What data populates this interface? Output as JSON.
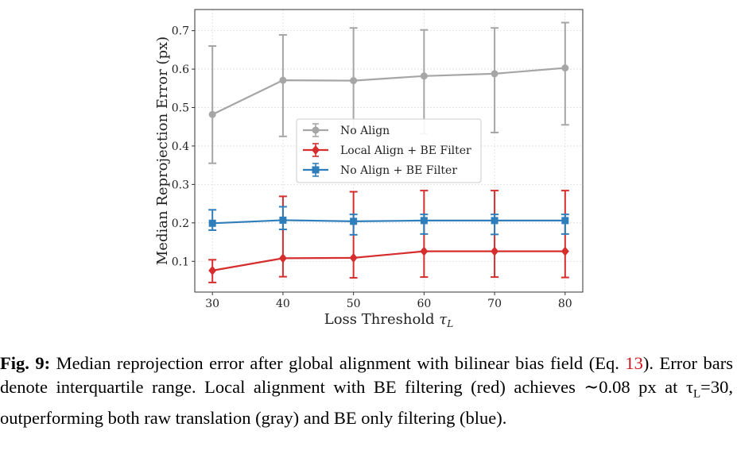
{
  "chart_data": {
    "type": "line",
    "title": "",
    "xlabel_prefix": "Loss Threshold ",
    "xlabel_var": "τ",
    "xlabel_sub": "L",
    "ylabel": "Median Reprojection Error (px)",
    "x": [
      30,
      40,
      50,
      60,
      70,
      80
    ],
    "xlim": [
      27.5,
      82.5
    ],
    "ylim": [
      0.02,
      0.755
    ],
    "yticks": [
      "0.1",
      "0.2",
      "0.3",
      "0.4",
      "0.5",
      "0.6",
      "0.7"
    ],
    "ytick_values": [
      0.1,
      0.2,
      0.3,
      0.4,
      0.5,
      0.6,
      0.7
    ],
    "xticks": [
      "30",
      "40",
      "50",
      "60",
      "70",
      "80"
    ],
    "grid": true,
    "legend_position": "center-left",
    "series": [
      {
        "name": "No Align",
        "color": "#a6a6a6",
        "marker": "circle",
        "values": [
          0.482,
          0.571,
          0.57,
          0.582,
          0.588,
          0.603
        ],
        "err_low": [
          0.355,
          0.425,
          0.445,
          0.432,
          0.435,
          0.455
        ],
        "err_high": [
          0.66,
          0.689,
          0.707,
          0.702,
          0.707,
          0.721
        ]
      },
      {
        "name": "Local Align + BE Filter",
        "color": "#d62d2d",
        "marker": "diamond",
        "values": [
          0.076,
          0.108,
          0.109,
          0.126,
          0.126,
          0.126
        ],
        "err_low": [
          0.045,
          0.06,
          0.057,
          0.059,
          0.059,
          0.058
        ],
        "err_high": [
          0.104,
          0.269,
          0.281,
          0.284,
          0.284,
          0.284
        ]
      },
      {
        "name": "No Align + BE Filter",
        "color": "#2f7ebc",
        "marker": "square",
        "values": [
          0.199,
          0.207,
          0.204,
          0.206,
          0.206,
          0.206
        ],
        "err_low": [
          0.181,
          0.183,
          0.169,
          0.171,
          0.17,
          0.171
        ],
        "err_high": [
          0.234,
          0.242,
          0.222,
          0.222,
          0.222,
          0.222
        ]
      }
    ]
  },
  "caption": {
    "label": "Fig. 9:",
    "text1": " Median reprojection error after global alignment with bilinear bias field (Eq. ",
    "eq_ref": "13",
    "text2": "). Error bars denote interquartile range. Local alignment with BE filtering (red) achieves ∼0.08 px at τ",
    "tau_sub": "L",
    "text3": "=30, outperforming both raw translation (gray) and BE only filtering (blue)."
  }
}
